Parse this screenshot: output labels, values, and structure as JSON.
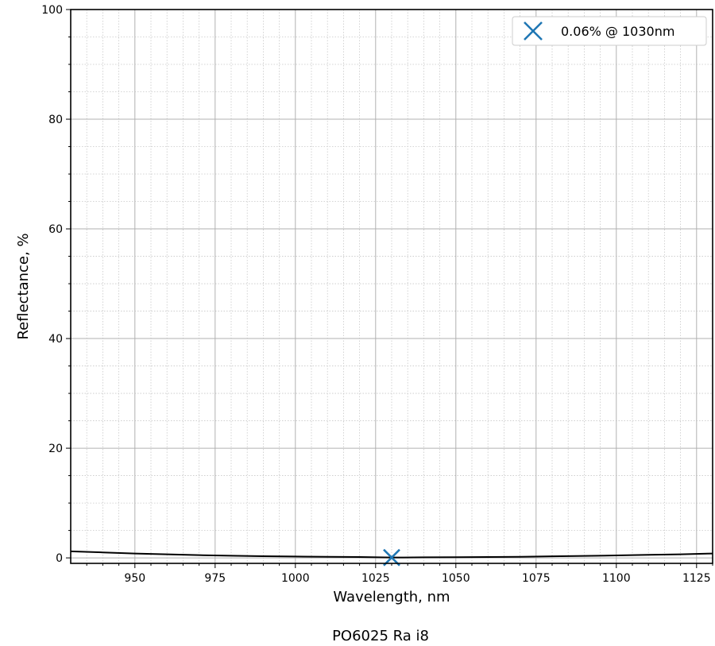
{
  "chart_data": {
    "type": "line",
    "xlabel": "Wavelength, nm",
    "ylabel": "Reflectance, %",
    "caption": "PO6025 Ra i8",
    "xlim": [
      930,
      1130
    ],
    "ylim": [
      -1,
      100
    ],
    "x_ticks": [
      950,
      975,
      1000,
      1025,
      1050,
      1075,
      1100,
      1125
    ],
    "y_ticks": [
      0,
      20,
      40,
      60,
      80,
      100
    ],
    "grid": true,
    "minor_grid": true,
    "legend_position": "top-right",
    "line_color": "#000000",
    "marker_color": "#1f77b4",
    "series": [
      {
        "x": [
          930,
          940,
          950,
          960,
          970,
          980,
          990,
          1000,
          1010,
          1020,
          1030,
          1040,
          1050,
          1060,
          1070,
          1080,
          1090,
          1100,
          1110,
          1120,
          1130
        ],
        "y": [
          1.2,
          1.0,
          0.8,
          0.65,
          0.5,
          0.4,
          0.3,
          0.25,
          0.2,
          0.15,
          0.06,
          0.1,
          0.12,
          0.15,
          0.2,
          0.28,
          0.35,
          0.45,
          0.55,
          0.65,
          0.8
        ]
      }
    ],
    "marker": {
      "x": 1030,
      "y": 0.06,
      "label": "0.06% @ 1030nm"
    }
  }
}
